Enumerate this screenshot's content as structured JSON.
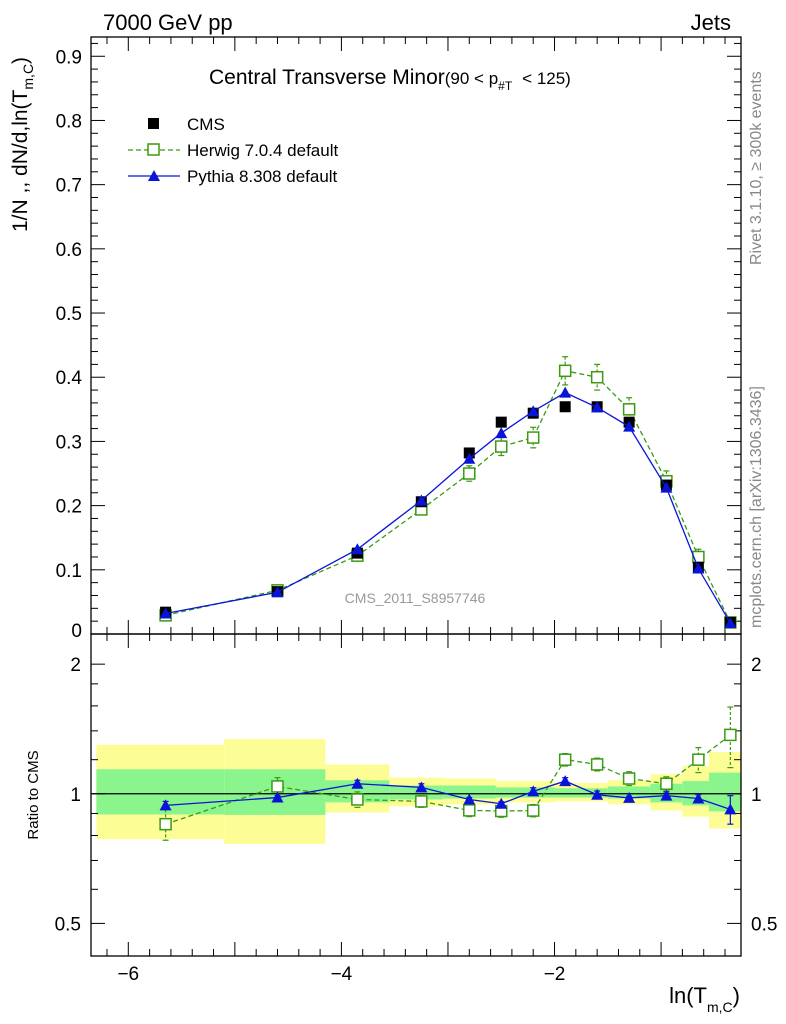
{
  "header": {
    "left": "7000 GeV pp",
    "right": "Jets",
    "title_main": "Central Transverse Minor",
    "title_cut": "(90 < p",
    "title_cut_sub": "#T",
    "title_cut_end": "< 125)",
    "watermark": "CMS_2011_S8957746",
    "side_rivet": "Rivet 3.1.10, ≥ 300k events",
    "side_mcplots": "mcplots.cern.ch [arXiv:1306.3436]"
  },
  "axes": {
    "ylabel_main": "1/N ,, dN/d,ln(T",
    "ylabel_main_sub": "m,C",
    "ylabel_main_end": ")",
    "ylabel_ratio": "Ratio to CMS",
    "xlabel": "ln(T",
    "xlabel_sub": "m,C",
    "xlabel_end": ")"
  },
  "legend": {
    "cms": "CMS",
    "herwig": "Herwig 7.0.4 default",
    "pythia": "Pythia 8.308 default"
  },
  "colors": {
    "cms": "#000000",
    "herwig": "#3a9a12",
    "pythia": "#0a14d8",
    "band_inner": "#8af58c",
    "band_outer": "#fdfd95"
  },
  "chart_data": [
    {
      "type": "line",
      "panel": "main",
      "xlim": [
        -6.35,
        -0.25
      ],
      "ylim": [
        0,
        0.93
      ],
      "x_ticks": [
        -6,
        -4,
        -2
      ],
      "x_tick_labels": [
        "−6",
        "−4",
        "−2"
      ],
      "y_ticks": [
        0,
        0.1,
        0.2,
        0.3,
        0.4,
        0.5,
        0.6,
        0.7,
        0.8,
        0.9
      ],
      "y_tick_labels": [
        "0",
        "0.1",
        "0.2",
        "0.3",
        "0.4",
        "0.5",
        "0.6",
        "0.7",
        "0.8",
        "0.9"
      ],
      "legend_position": "top-left",
      "series": [
        {
          "name": "CMS",
          "key": "cms",
          "x": [
            -5.65,
            -4.6,
            -3.85,
            -3.25,
            -2.8,
            -2.5,
            -2.2,
            -1.9,
            -1.6,
            -1.3,
            -0.95,
            -0.65,
            -0.35
          ],
          "y": [
            0.034,
            0.066,
            0.126,
            0.206,
            0.282,
            0.33,
            0.344,
            0.354,
            0.354,
            0.33,
            0.232,
            0.104,
            0.018
          ]
        },
        {
          "name": "Herwig 7.0.4 default",
          "key": "herwig",
          "x": [
            -5.65,
            -4.6,
            -3.85,
            -3.25,
            -2.8,
            -2.5,
            -2.2,
            -1.9,
            -1.6,
            -1.3,
            -0.95,
            -0.65,
            -0.35
          ],
          "y": [
            0.029,
            0.068,
            0.122,
            0.194,
            0.25,
            0.292,
            0.306,
            0.41,
            0.4,
            0.35,
            0.238,
            0.12,
            0.018
          ],
          "err": [
            0.004,
            0.004,
            0.006,
            0.008,
            0.012,
            0.014,
            0.016,
            0.022,
            0.02,
            0.018,
            0.016,
            0.012,
            0.006
          ]
        },
        {
          "name": "Pythia 8.308 default",
          "key": "pythia",
          "x": [
            -5.65,
            -4.6,
            -3.85,
            -3.25,
            -2.8,
            -2.5,
            -2.2,
            -1.9,
            -1.6,
            -1.3,
            -0.95,
            -0.65,
            -0.35
          ],
          "y": [
            0.032,
            0.065,
            0.132,
            0.208,
            0.273,
            0.313,
            0.347,
            0.376,
            0.353,
            0.323,
            0.228,
            0.102,
            0.017
          ]
        }
      ]
    },
    {
      "type": "line",
      "panel": "ratio",
      "log_scale_y": true,
      "ylim": [
        0.42,
        2.35
      ],
      "y_ticks": [
        0.5,
        1,
        2
      ],
      "y_tick_labels": [
        "0.5",
        "1",
        "2"
      ],
      "bins": [
        {
          "x0": -6.3,
          "x1": -5.1,
          "inner": [
            0.895,
            1.14
          ],
          "outer": [
            0.785,
            1.3
          ]
        },
        {
          "x0": -5.1,
          "x1": -4.15,
          "inner": [
            0.893,
            1.14
          ],
          "outer": [
            0.765,
            1.34
          ]
        },
        {
          "x0": -4.15,
          "x1": -3.55,
          "inner": [
            0.955,
            1.075
          ],
          "outer": [
            0.905,
            1.17
          ]
        },
        {
          "x0": -3.55,
          "x1": -3.05,
          "inner": [
            0.97,
            1.045
          ],
          "outer": [
            0.935,
            1.09
          ]
        },
        {
          "x0": -3.05,
          "x1": -2.55,
          "inner": [
            0.975,
            1.045
          ],
          "outer": [
            0.945,
            1.085
          ]
        },
        {
          "x0": -2.55,
          "x1": -2.0,
          "inner": [
            0.98,
            1.035
          ],
          "outer": [
            0.955,
            1.07
          ]
        },
        {
          "x0": -2.0,
          "x1": -1.5,
          "inner": [
            0.98,
            1.03
          ],
          "outer": [
            0.96,
            1.06
          ]
        },
        {
          "x0": -1.5,
          "x1": -1.1,
          "inner": [
            0.975,
            1.04
          ],
          "outer": [
            0.945,
            1.075
          ]
        },
        {
          "x0": -1.1,
          "x1": -0.8,
          "inner": [
            0.955,
            1.055
          ],
          "outer": [
            0.915,
            1.11
          ]
        },
        {
          "x0": -0.8,
          "x1": -0.55,
          "inner": [
            0.94,
            1.07
          ],
          "outer": [
            0.885,
            1.16
          ]
        },
        {
          "x0": -0.55,
          "x1": -0.25,
          "inner": [
            0.91,
            1.12
          ],
          "outer": [
            0.83,
            1.25
          ]
        }
      ],
      "series": [
        {
          "name": "Herwig 7.0.4 default",
          "key": "herwig",
          "x": [
            -5.65,
            -4.6,
            -3.85,
            -3.25,
            -2.8,
            -2.5,
            -2.2,
            -1.9,
            -1.6,
            -1.3,
            -0.95,
            -0.65,
            -0.35
          ],
          "y": [
            0.85,
            1.04,
            0.97,
            0.96,
            0.915,
            0.912,
            0.914,
            1.2,
            1.17,
            1.085,
            1.055,
            1.2,
            1.37
          ],
          "err": [
            0.07,
            0.05,
            0.04,
            0.03,
            0.03,
            0.03,
            0.03,
            0.04,
            0.04,
            0.04,
            0.04,
            0.08,
            0.22
          ]
        },
        {
          "name": "Pythia 8.308 default",
          "key": "pythia",
          "x": [
            -5.65,
            -4.6,
            -3.85,
            -3.25,
            -2.8,
            -2.5,
            -2.2,
            -1.9,
            -1.6,
            -1.3,
            -0.95,
            -0.65,
            -0.35
          ],
          "y": [
            0.94,
            0.98,
            1.055,
            1.035,
            0.97,
            0.948,
            1.013,
            1.07,
            0.995,
            0.978,
            0.99,
            0.975,
            0.92
          ],
          "err": [
            0.02,
            0.01,
            0.02,
            0.02,
            0.01,
            0.01,
            0.02,
            0.02,
            0.02,
            0.01,
            0.02,
            0.02,
            0.07
          ]
        }
      ]
    }
  ]
}
